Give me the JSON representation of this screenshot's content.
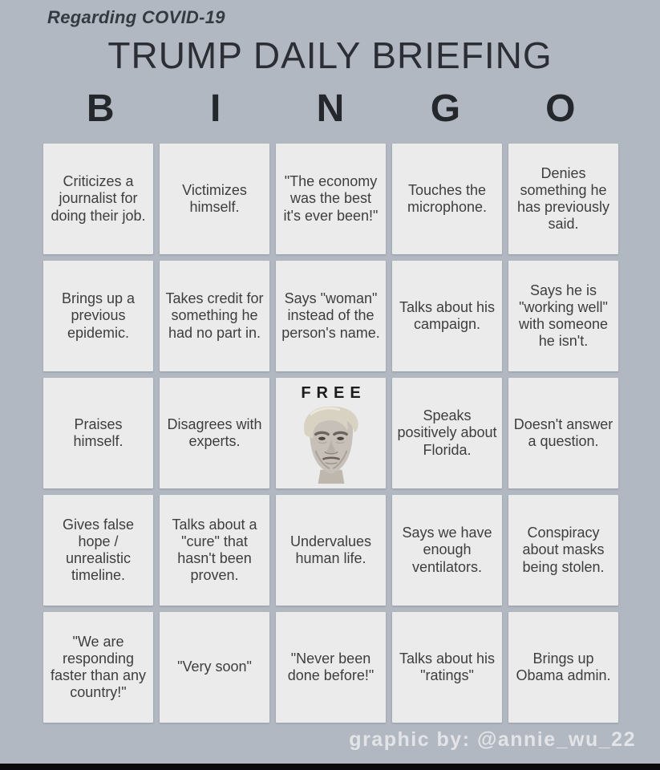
{
  "header": {
    "regarding": "Regarding COVID-19",
    "title": "TRUMP DAILY BRIEFING",
    "bingo_letters": [
      "B",
      "I",
      "N",
      "G",
      "O"
    ]
  },
  "board": {
    "free": {
      "label": "FREE",
      "image": "trump-face-photo"
    },
    "rows": [
      [
        "Criticizes a journalist for doing their job.",
        "Victimizes himself.",
        "\"The economy was the best it's ever been!\"",
        "Touches the microphone.",
        "Denies something he has previously said."
      ],
      [
        "Brings up a previous epidemic.",
        "Takes credit for something he had no part in.",
        "Says \"woman\" instead of the person's name.",
        "Talks about his campaign.",
        "Says he is \"working well\" with someone he isn't."
      ],
      [
        "Praises himself.",
        "Disagrees with experts.",
        null,
        "Speaks positively about Florida.",
        "Doesn't answer a question."
      ],
      [
        "Gives false hope / unrealistic timeline.",
        "Talks about a \"cure\" that hasn't been proven.",
        "Undervalues human life.",
        "Says we have enough ventilators.",
        "Conspiracy about masks being stolen."
      ],
      [
        "\"We are responding faster than any country!\"",
        "\"Very soon\"",
        "\"Never been done before!\"",
        "Talks about his \"ratings\"",
        "Brings up Obama admin."
      ]
    ]
  },
  "footer": {
    "credit": "graphic by: @annie_wu_22"
  },
  "colors": {
    "background": "#b2b8c1",
    "cell": "#ebebeb",
    "cell_text": "#3e3e3e",
    "heading": "#2b2f35",
    "bottom_bar": "#0a0a0a"
  }
}
